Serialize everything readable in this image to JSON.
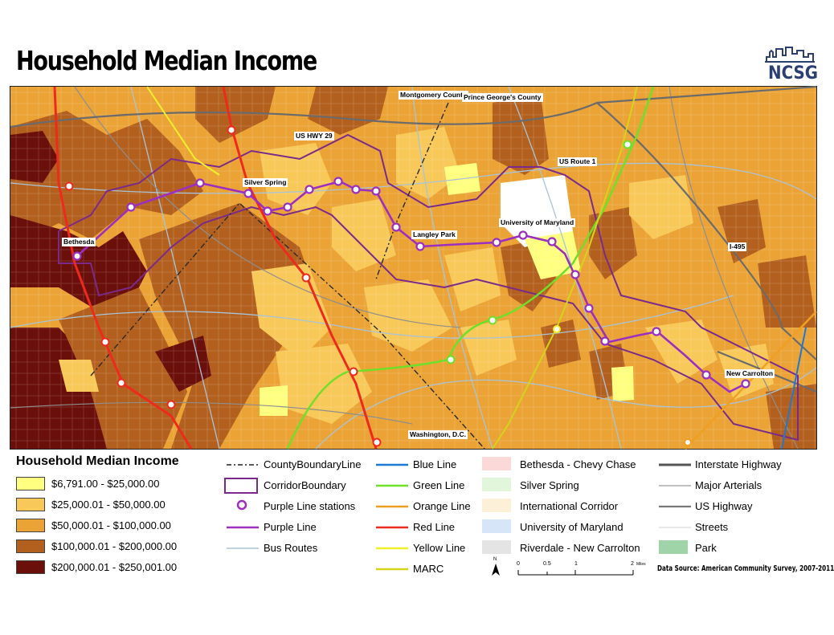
{
  "title": "Household Median Income",
  "logo": {
    "text": "NCSG"
  },
  "colors": {
    "income_1": "#ffff80",
    "income_2": "#f8c858",
    "income_3": "#eba336",
    "income_4": "#b3601e",
    "income_5": "#6b0f0a",
    "purple_line": "#9c2fc0",
    "corridor": "#7a2a8a",
    "red_line": "#ee2a1c",
    "green_line": "#6ee02a",
    "yellow_line": "#f0f02a",
    "marc": "#d4d41a",
    "orange_line": "#f0a020",
    "blue_line": "#1f78d4"
  },
  "map_labels": {
    "montgomery": "Montgomery County",
    "princegeorges": "Prince George's County",
    "ushwy29": "US HWY 29",
    "silverspring": "Silver Spring",
    "usroute1": "US Route 1",
    "bethesda": "Bethesda",
    "langleypark": "Langley Park",
    "umd": "University of Maryland",
    "i495": "I-495",
    "newcarrolton": "New Carrolton",
    "washingtondc": "Washington, D.C."
  },
  "legend": {
    "title": "Household Median Income",
    "income_classes": [
      {
        "label": "$6,791.00 - $25,000.00",
        "color": "#ffff80"
      },
      {
        "label": "$25,000.01 - $50,000.00",
        "color": "#f8c858"
      },
      {
        "label": "$50,000.01 - $100,000.00",
        "color": "#eba336"
      },
      {
        "label": "$100,000.01 - $200,000.00",
        "color": "#b3601e"
      },
      {
        "label": "$200,000.01 - $250,001.00",
        "color": "#6b0f0a"
      }
    ],
    "col2": [
      "CountyBoundaryLine",
      "CorridorBoundary",
      "Purple Line stations",
      "Purple Line",
      "Bus Routes"
    ],
    "col3": [
      "Blue Line",
      "Green Line",
      "Orange Line",
      "Red Line",
      "Yellow Line",
      "MARC"
    ],
    "col4": [
      {
        "label": "Bethesda - Chevy Chase",
        "color": "#fcd9d9"
      },
      {
        "label": "Silver Spring",
        "color": "#e2f6dc"
      },
      {
        "label": "International Corridor",
        "color": "#fdf0d8"
      },
      {
        "label": "University of Maryland",
        "color": "#d6e6f8"
      },
      {
        "label": "Riverdale - New Carrolton",
        "color": "#e4e4e4"
      },
      {
        "label": "Park",
        "color": "#9fd4a8"
      }
    ],
    "col5": [
      "Interstate Highway",
      "Major Arterials",
      "US Highway",
      "Streets"
    ]
  },
  "scale": {
    "north": "N",
    "t0": "0",
    "t1": "0.5",
    "t2": "1",
    "t3": "2",
    "unit": "Miles"
  },
  "source": "Data Source: American Community Survey, 2007-2011"
}
